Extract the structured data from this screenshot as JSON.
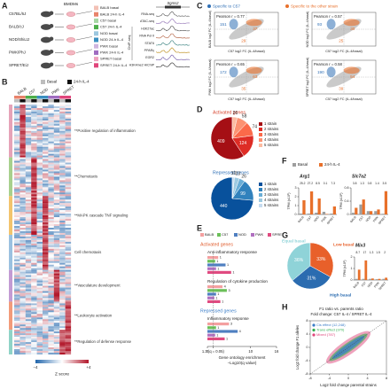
{
  "panel_labels": [
    "A",
    "B",
    "C",
    "D",
    "E",
    "F",
    "G",
    "H"
  ],
  "panel_a": {
    "strains": [
      "C57BL/6J",
      "BALB/cJ",
      "NOD/ShiLtJ",
      "PWK/PhJ",
      "SPRET/EiJ"
    ],
    "cell_type": "BMDMs",
    "conditions": [
      "BALB basal",
      "BALB 24-h IL-4",
      "C57 basal",
      "C57 24-h IL-4",
      "NOD basal",
      "NOD 24-h IL-4",
      "PWK basal",
      "PWK 24-h IL-4",
      "SPRET basal",
      "SPRET 24-h IL-4"
    ],
    "strain_colors": [
      "#e8836b",
      "#4daf4a",
      "#3a8fc0",
      "#a06cc0",
      "#e0457b"
    ],
    "tracks": [
      "RNA-seq",
      "ATAC-seq",
      "H3K27ac",
      "RNA Pol II",
      "STAT6",
      "PPARγ",
      "EGR2",
      "H3K4me2 HiChIP"
    ],
    "track_group": "ChIP-seq",
    "gene": "Sgms2"
  },
  "panel_b": {
    "legend": [
      {
        "name": "Basal",
        "color": "#bdbdbd"
      },
      {
        "name": "24-h IL-4",
        "color": "#111111"
      }
    ],
    "columns": [
      "BALB",
      "C57",
      "NOD",
      "PWK",
      "SPRET"
    ],
    "clusters": [
      "**Positive regulation of inflammation",
      "**Chemotaxis",
      "**MAPK cascade TNF signaling",
      "Cell chemotaxis",
      "**Vasculature development",
      "**Leukocyte activation",
      "**Regulation of defense response"
    ],
    "colorbar_title": "Z score",
    "colorbar_ticks": [
      "−4",
      "+4"
    ]
  },
  "panel_c": {
    "legend": [
      {
        "name": "Specific to C57",
        "color": "#2f6fb5"
      },
      {
        "name": "Specific to the other strain",
        "color": "#e8702a"
      }
    ]
  },
  "chart_data": [
    {
      "type": "scatter",
      "ylabel": "BALB log2 FC (IL-4/basal)",
      "xlabel": "C57 log2 FC (IL-4/basal)",
      "annotation": "Pearson r = 0.77",
      "counts": [
        151,
        37,
        29
      ]
    },
    {
      "type": "scatter",
      "ylabel": "NOD log2 FC (IL-4/basal)",
      "xlabel": "C57 log2 FC (IL-4/basal)",
      "annotation": "Pearson r = 0.57",
      "counts": [
        93,
        30,
        25
      ]
    },
    {
      "type": "scatter",
      "ylabel": "PWK log2 FC (IL-4/basal)",
      "xlabel": "C57 log2 FC (IL-4/basal)",
      "annotation": "Pearson r = 0.65",
      "counts": [
        172,
        63,
        35
      ]
    },
    {
      "type": "scatter",
      "ylabel": "SPRET log2 FC (IL-4/basal)",
      "xlabel": "C57 log2 FC (IL-4/basal)",
      "annotation": "Pearson r = 0.58",
      "counts": [
        190,
        54,
        39
      ]
    },
    {
      "type": "pie",
      "title": "Activated genes",
      "title_color": "#d6402a",
      "categories": [
        "1 strain",
        "2 strains",
        "3 strains",
        "4 strains",
        "5 strains"
      ],
      "values": [
        409,
        124,
        74,
        58,
        26
      ],
      "colors": [
        "#a50f15",
        "#de2d26",
        "#fb6a4a",
        "#fc9272",
        "#fcbba1"
      ]
    },
    {
      "type": "pie",
      "title": "Repressed genes",
      "title_color": "#2f6fb5",
      "categories": [
        "1 strain",
        "2 strains",
        "3 strains",
        "4 strains",
        "5 strains"
      ],
      "values": [
        440,
        99,
        26,
        23,
        10
      ],
      "colors": [
        "#08519c",
        "#3182bd",
        "#6baed6",
        "#9ecae1",
        "#c6dbef"
      ]
    },
    {
      "type": "hbar",
      "series": [
        {
          "name": "BALB",
          "color": "#f4a0a0"
        },
        {
          "name": "C57",
          "color": "#6bbf59"
        },
        {
          "name": "NOD",
          "color": "#4f7fc0"
        },
        {
          "name": "PWK",
          "color": "#b070c0"
        },
        {
          "name": "SPRET",
          "color": "#e04a80"
        }
      ],
      "sections": [
        {
          "title": "Activated genes",
          "color": "#e05a2a",
          "terms": [
            {
              "name": "Anti-inflammatory response",
              "values": [
                2.5,
                1.8,
                4.2,
                2.0,
                5.5
              ],
              "counts": [
                1,
                1,
                1,
                1,
                1
              ]
            },
            {
              "name": "Regulation of cytokine production",
              "values": [
                3.5,
                4.5,
                2.0,
                1.6,
                3.0
              ],
              "counts": [
                4,
                3,
                1,
                1,
                1
              ]
            }
          ]
        },
        {
          "title": "Repressed genes",
          "color": "#3a7dc8",
          "terms": [
            {
              "name": "Inflammatory response",
              "values": [
                5.0,
                2.0,
                7.0,
                1.8,
                4.0
              ],
              "counts": [
                3,
                1,
                4,
                1,
                1
              ]
            }
          ]
        }
      ],
      "xlim": [
        0,
        16
      ],
      "xticks": [
        0,
        {
          "value": 1.3,
          "label": "1.3 (q = 0.05)"
        },
        10,
        16
      ],
      "xlabel": "Gene ontology enrichment",
      "xlabel2": "−Log10(q value)"
    },
    {
      "type": "grouped-bar",
      "title": "Arg1",
      "ylabel": "TPM (x10³)",
      "categories": [
        "BALB",
        "C57",
        "NOD",
        "PWK",
        "SPRET"
      ],
      "series": [
        {
          "name": "Basal",
          "color": "#9e9e9e",
          "values": [
            0.1,
            0.1,
            0.2,
            0.3,
            0.1
          ]
        },
        {
          "name": "24-h IL-4",
          "color": "#e8702a",
          "values": [
            1.6,
            2.6,
            1.8,
            0.05,
            0.9
          ]
        }
      ],
      "fold_changes": [
        25.2,
        27.2,
        8.5,
        0.1,
        7.3
      ],
      "ylim": [
        0,
        3
      ],
      "yticks": [
        0,
        1,
        2,
        3
      ]
    },
    {
      "type": "grouped-bar",
      "title": "Slc7a2",
      "ylabel": "TPM (x10²)",
      "categories": [
        "BALB",
        "C57",
        "NOD",
        "PWK",
        "SPRET"
      ],
      "series": [
        {
          "color": "#9e9e9e",
          "values": [
            0.05,
            0.3,
            0.1,
            0.1,
            0.02
          ]
        },
        {
          "color": "#e8702a",
          "values": [
            0.2,
            0.45,
            0.1,
            0.15,
            0.7
          ]
        }
      ],
      "fold_changes": [
        3.8,
        1.3,
        0.8,
        1.4,
        3.5
      ],
      "ylim": [
        0,
        0.8
      ],
      "yticks": [
        0,
        0.4,
        0.8
      ]
    },
    {
      "type": "pie",
      "categories": [
        "Equal basal",
        "High basal",
        "Low basal"
      ],
      "values": [
        36,
        31,
        33
      ],
      "value_labels": [
        "36%",
        "31%",
        "33%"
      ],
      "colors": [
        "#8fd3d8",
        "#2b6cb0",
        "#e8602a"
      ]
    },
    {
      "type": "grouped-bar",
      "title": "Mix3",
      "ylabel": "TPM (x10²)",
      "categories": [
        "BALB",
        "C57",
        "NOD",
        "PWK",
        "SPRET"
      ],
      "series": [
        {
          "color": "#9e9e9e",
          "values": [
            0.1,
            0.1,
            0.1,
            0.07,
            0.1
          ]
        },
        {
          "color": "#e8702a",
          "values": [
            0.9,
            1.7,
            0.13,
            0.1,
            0.2
          ]
        }
      ],
      "fold_changes": [
        8.7,
        17.0,
        1.3,
        1.5,
        2.0
      ],
      "ylim": [
        0,
        2
      ],
      "yticks": [
        0,
        1,
        2
      ]
    },
    {
      "type": "scatter",
      "title": "F1 ratio vs. parents ratio",
      "subtitle": "Fold change: C57 IL-4 / SPRET IL-4",
      "series": [
        {
          "name": "Cis effect (12,248)",
          "color": "#3a7dc8"
        },
        {
          "name": "Trans effect (370)",
          "color": "#2fb050"
        },
        {
          "name": "Mixed (787)",
          "color": "#e0457b"
        }
      ],
      "xlabel": "Log2 fold change parental strains",
      "ylabel": "Log2 fold change F1 alleles",
      "xlim": [
        -8,
        8
      ],
      "ylim": [
        -8,
        8
      ],
      "xticks": [
        -8,
        -4,
        0,
        4,
        8
      ],
      "yticks": [
        -8,
        -4,
        0,
        4,
        8
      ]
    }
  ]
}
